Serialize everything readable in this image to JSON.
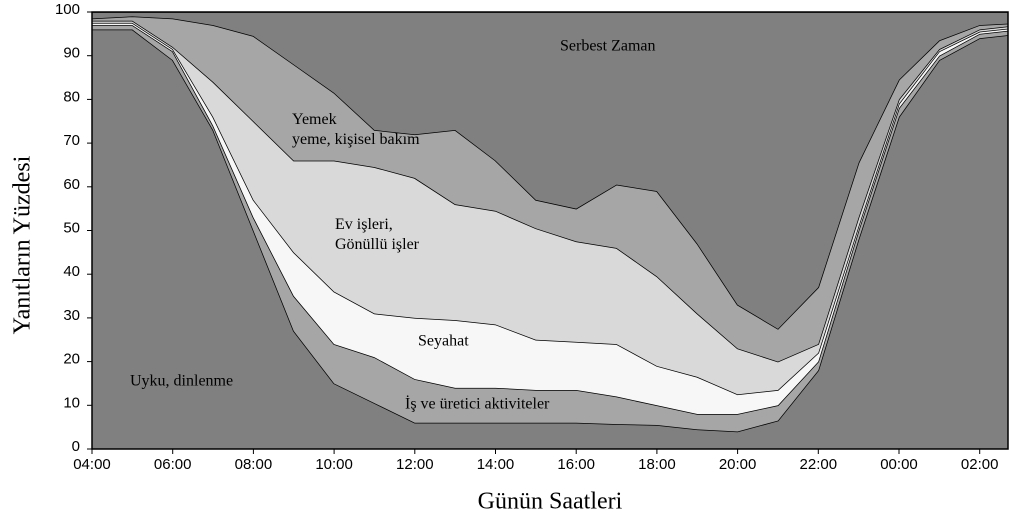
{
  "chart_data": {
    "type": "stacked_area",
    "x_label": "Günün Saatleri",
    "y_label": "Yanıtların Yüzdesi",
    "categories": [
      "04:00",
      null,
      "06:00",
      null,
      "08:00",
      null,
      "10:00",
      null,
      "12:00",
      null,
      "14:00",
      null,
      "16:00",
      null,
      "18:00",
      null,
      "20:00",
      null,
      "22:00",
      null,
      "00:00",
      null,
      "02:00",
      null
    ],
    "ylim": [
      0,
      100
    ],
    "yticks": [
      0,
      10,
      20,
      30,
      40,
      50,
      60,
      70,
      80,
      90,
      100
    ],
    "series": [
      {
        "name": "Uyku, dinlenme",
        "color": "#808080",
        "values": [
          96,
          96,
          89,
          73,
          50,
          27,
          15,
          10.5,
          6,
          6,
          6,
          6,
          6,
          5.7,
          5.5,
          4.5,
          4,
          6.5,
          18,
          48,
          76,
          89,
          94,
          95
        ]
      },
      {
        "name": "İş ve üretici  aktiviteler",
        "color": "#a6a6a6",
        "values": [
          1,
          1,
          2,
          1,
          3,
          8,
          9,
          10.5,
          10,
          8,
          8,
          7.5,
          7.5,
          6.3,
          4.5,
          3.5,
          4,
          3.5,
          2,
          2,
          2,
          1,
          1,
          1
        ]
      },
      {
        "name": "Seyahat",
        "color": "#f7f7f7",
        "values": [
          0.5,
          0.5,
          0.5,
          2,
          4,
          10,
          12,
          10,
          14,
          15.5,
          14.5,
          11.5,
          11,
          12,
          9,
          8.5,
          4.5,
          3.5,
          2,
          1,
          1,
          1,
          0.5,
          0.5
        ]
      },
      {
        "name": "Ev işleri,\nGönüllü işler",
        "color": "#d9d9d9",
        "values": [
          0.5,
          0.5,
          0.5,
          8,
          18,
          21,
          30,
          33.5,
          32,
          26.5,
          26,
          25.5,
          23,
          22,
          20.5,
          14.5,
          10.5,
          6.5,
          2,
          2,
          1,
          0.5,
          0.5,
          0.5
        ]
      },
      {
        "name": "Yemek\nyeme, kişisel bakım",
        "color": "#a6a6a6",
        "values": [
          0.5,
          1,
          6.5,
          13,
          19.5,
          22,
          15.5,
          8.5,
          10,
          17,
          11.5,
          6.5,
          7.5,
          14.5,
          19.5,
          16,
          10,
          7.5,
          13,
          12.5,
          4.5,
          2,
          1,
          0.5
        ]
      },
      {
        "name": "Serbest  Zaman",
        "color": "#808080",
        "values": [
          1.5,
          1,
          1.5,
          3,
          5.5,
          12,
          18.5,
          27,
          28,
          27,
          34,
          43,
          45,
          39.5,
          41,
          53,
          67,
          72.5,
          63,
          34.5,
          15.5,
          6.5,
          3,
          2.5
        ]
      }
    ]
  }
}
